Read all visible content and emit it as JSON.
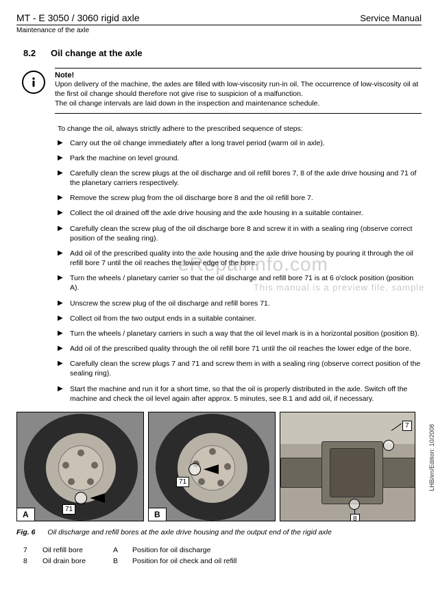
{
  "header": {
    "title": "MT - E 3050 / 3060 rigid axle",
    "manual": "Service Manual",
    "sub": "Maintenance of the axle"
  },
  "section": {
    "num": "8.2",
    "title": "Oil change at the axle"
  },
  "note": {
    "label": "Note!",
    "line1": "Upon delivery of the machine, the axles are filled with low-viscosity run-in oil. The occurrence of low-viscosity oil at the first oil change should therefore not give rise to suspicion of a malfunction.",
    "line2": "The oil change intervals are laid down in the inspection and maintenance schedule."
  },
  "intro": "To change the oil, always strictly adhere to the prescribed sequence of steps:",
  "steps": [
    "Carry out the oil change immediately after a long travel period (warm oil in axle).",
    "Park the machine on level ground.",
    "Carefully clean the screw plugs at the oil discharge and oil refill bores 7, 8 of the axle drive housing and 71 of the planetary carriers respectively.",
    "Remove the screw plug from the oil discharge bore 8 and the oil refill bore 7.",
    "Collect the oil drained off the axle drive housing and the axle housing in a suitable container.",
    "Carefully clean the screw plug of the oil discharge bore 8 and screw it in with a sealing ring (observe correct position of the sealing ring).",
    "Add oil of the prescribed quality into the axle housing and the axle drive housing by pouring it through the oil refill bore 7 until the oil reaches the lower edge of the bore.",
    "Turn the wheels / planetary carrier so that the oil discharge and refill bore 71 is at 6 o'clock position (position A).",
    "Unscrew the screw plug of the oil discharge and refill bores 71.",
    "Collect oil from the two output ends in a suitable container.",
    "Turn the wheels / planetary carriers in such a way that the oil level mark is in a horizontal position (position B).",
    "Add oil of the prescribed quality through the oil refill bore 71 until the oil reaches the lower edge of the bore.",
    "Carefully clean the screw plugs 7 and 71 and screw them in with a sealing ring (observe correct position of the sealing ring).",
    "Start the machine and run it for a short time, so that the oil is properly distributed in the axle. Switch off the machine and check the oil level again after approx. 5 minutes, see 8.1 and add oil, if necessary."
  ],
  "fig": {
    "labelA": "A",
    "labelB": "B",
    "callout71": "71",
    "callout7": "7",
    "callout8": "8",
    "caption_num": "Fig. 6",
    "caption": "Oil discharge and refill bores at the axle drive housing and the output end of the rigid axle"
  },
  "legend": {
    "k7": "7",
    "v7": "Oil refill bore",
    "k8": "8",
    "v8": "Oil drain bore",
    "kA": "A",
    "vA": "Position for oil discharge",
    "kB": "B",
    "vB": "Position for oil check and oil refill"
  },
  "watermark": {
    "main": "eRepairinfo.com",
    "sub": "This manual is a preview file, sample"
  },
  "credit": "LHB/en/Edition: 10/2008"
}
